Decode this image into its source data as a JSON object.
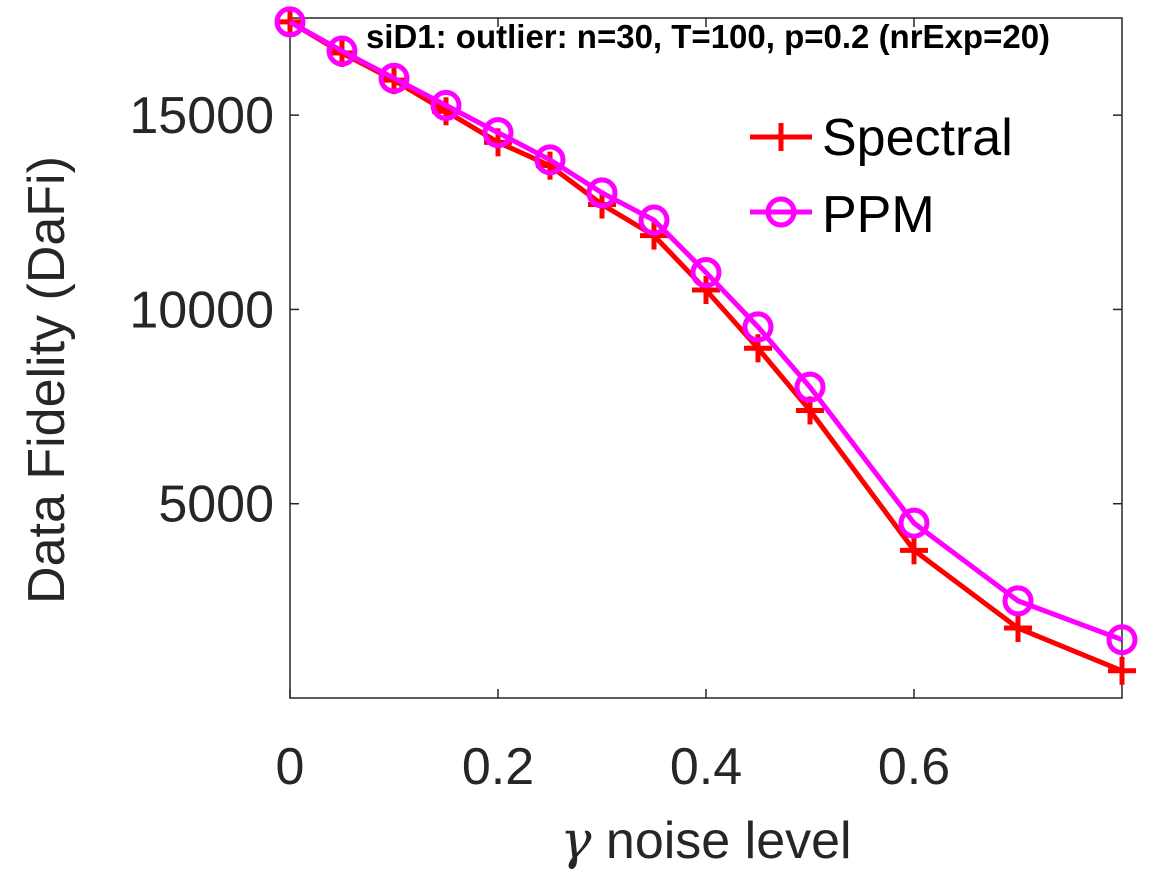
{
  "chart_data": {
    "type": "line",
    "title": "siD1: outlier: n=30, T=100, p=0.2 (nrExp=20)",
    "xlabel_symbol": "γ",
    "xlabel_text": " noise level",
    "ylabel": "Data Fidelity (DaFi)",
    "xlim": [
      0,
      0.8
    ],
    "ylim": [
      0,
      17500
    ],
    "xticks": [
      0,
      0.2,
      0.4,
      0.6
    ],
    "xtick_labels": [
      "0",
      "0.2",
      "0.4",
      "0.6"
    ],
    "yticks": [
      5000,
      10000,
      15000
    ],
    "ytick_labels": [
      "5000",
      "10000",
      "15000"
    ],
    "grid": false,
    "legend_position": "top-right",
    "x": [
      0,
      0.05,
      0.1,
      0.15,
      0.2,
      0.25,
      0.3,
      0.35,
      0.4,
      0.45,
      0.5,
      0.6,
      0.7,
      0.8
    ],
    "series": [
      {
        "name": "Spectral",
        "color": "#ff0000",
        "marker": "plus",
        "values": [
          17400,
          16600,
          15900,
          15100,
          14300,
          13700,
          12700,
          11900,
          10500,
          9000,
          7400,
          3800,
          1800,
          700
        ]
      },
      {
        "name": "PPM",
        "color": "#ff00ff",
        "marker": "circle",
        "values": [
          17400,
          16650,
          15950,
          15250,
          14550,
          13850,
          13000,
          12300,
          10950,
          9550,
          8000,
          4500,
          2500,
          1500
        ]
      }
    ]
  }
}
